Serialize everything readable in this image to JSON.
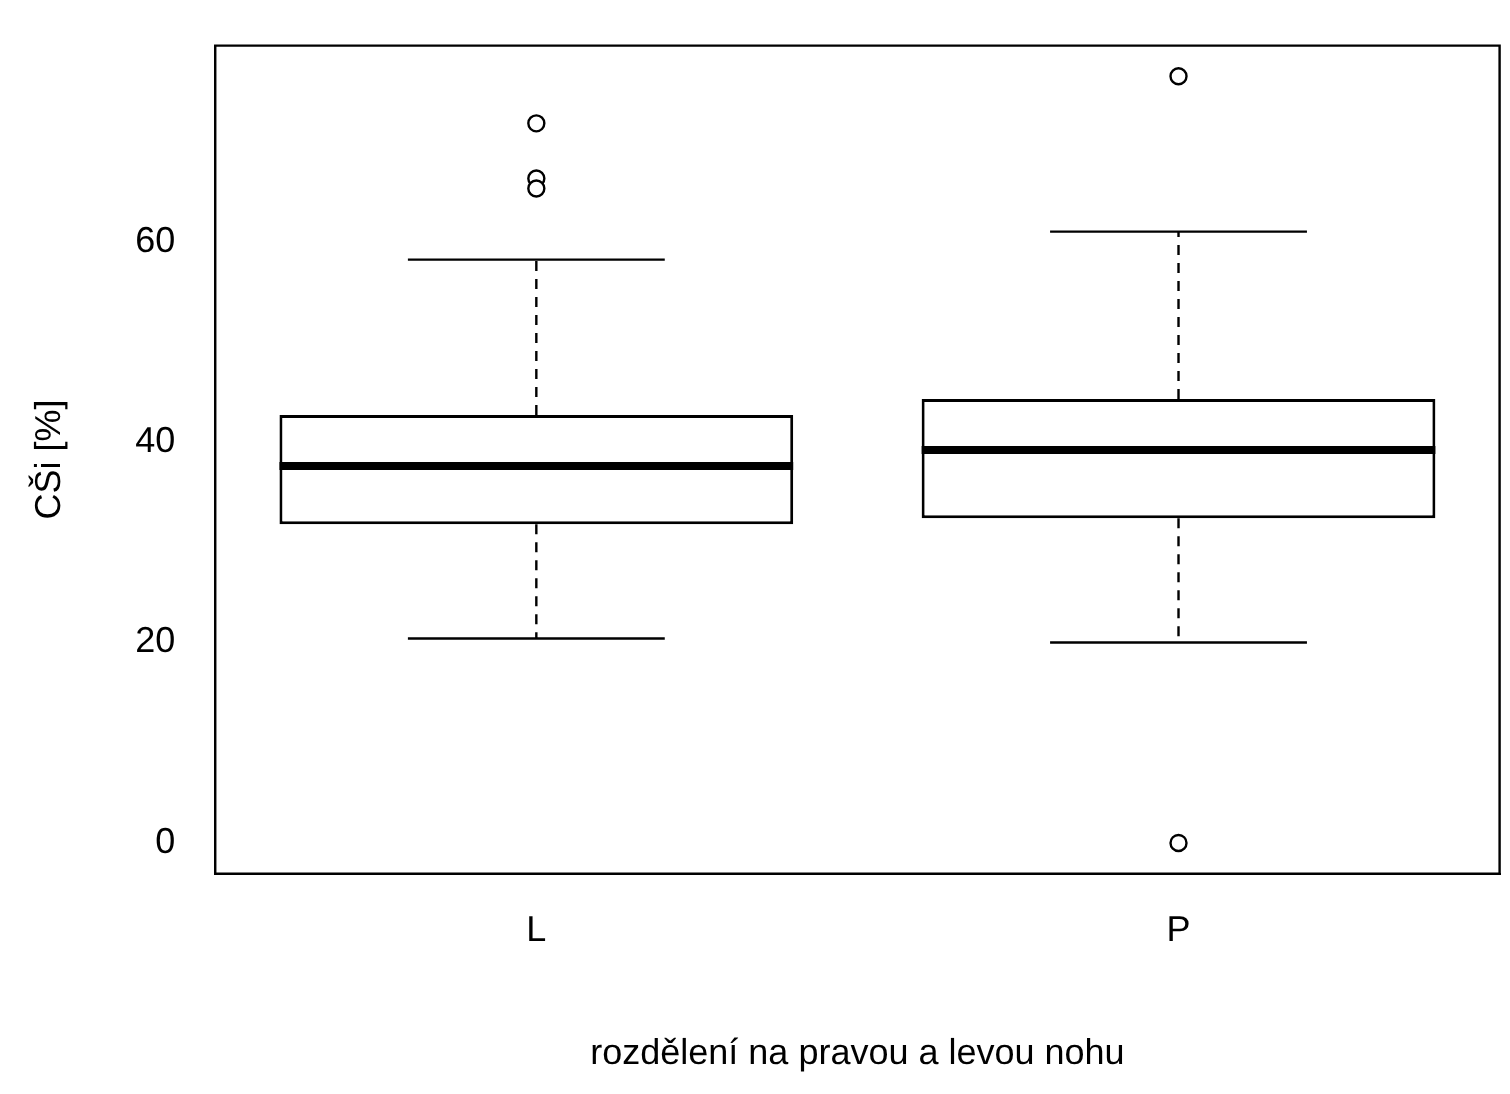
{
  "chart_data": {
    "type": "box",
    "xlabel": "rozdělení na pravou a levou nohu",
    "ylabel": "CŠi [%]",
    "categories": [
      "L",
      "P"
    ],
    "boxes": [
      {
        "low": 20.4,
        "q1": 31.8,
        "median": 37.6,
        "q3": 42.7,
        "high": 58.2,
        "outliers": [
          71.8,
          66.3,
          65.3
        ]
      },
      {
        "low": 20.0,
        "q1": 32.4,
        "median": 39.2,
        "q3": 44.3,
        "high": 61.0,
        "outliers": [
          76.5,
          0
        ]
      }
    ],
    "ylim": [
      -3.06,
      79.56
    ],
    "yticks": [
      0,
      20,
      40,
      60
    ]
  }
}
